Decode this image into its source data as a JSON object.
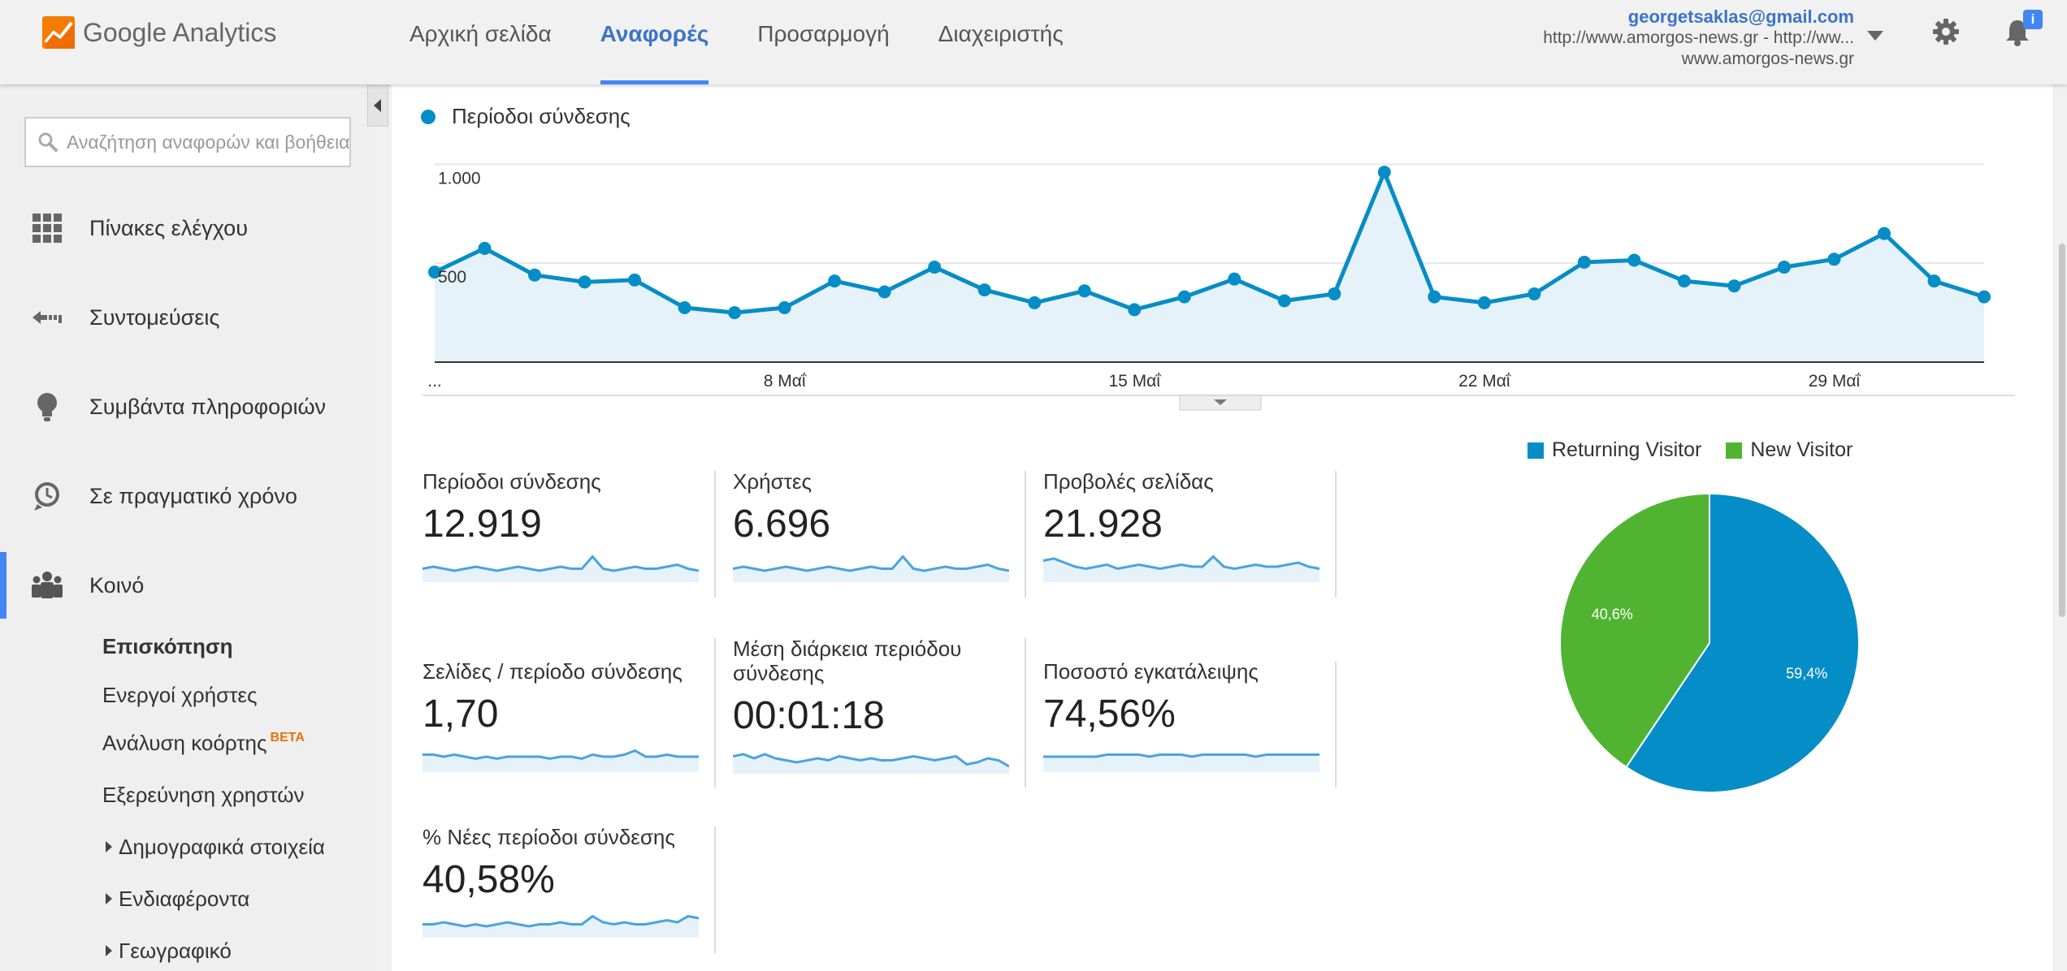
{
  "app": {
    "name": "Google Analytics"
  },
  "nav": {
    "items": [
      {
        "label": "Αρχική σελίδα",
        "active": false
      },
      {
        "label": "Αναφορές",
        "active": true
      },
      {
        "label": "Προσαρμογή",
        "active": false
      },
      {
        "label": "Διαχειριστής",
        "active": false
      }
    ]
  },
  "account": {
    "email": "georgetsaklas@gmail.com",
    "property": "http://www.amorgos-news.gr - http://ww...",
    "view": "www.amorgos-news.gr",
    "notification_badge": "i"
  },
  "search": {
    "placeholder": "Αναζήτηση αναφορών και βοήθεια"
  },
  "sidebar": {
    "items": [
      {
        "label": "Πίνακες ελέγχου",
        "icon": "dashboard-grid-icon"
      },
      {
        "label": "Συντομεύσεις",
        "icon": "shortcut-arrow-icon"
      },
      {
        "label": "Συμβάντα πληροφοριών",
        "icon": "lightbulb-icon"
      },
      {
        "label": "Σε πραγματικό χρόνο",
        "icon": "clock-icon"
      },
      {
        "label": "Κοινό",
        "icon": "audience-people-icon",
        "active": true
      }
    ],
    "subitems": [
      {
        "label": "Επισκόπηση",
        "selected": true
      },
      {
        "label": "Ενεργοί χρήστες"
      },
      {
        "label": "Ανάλυση κοόρτης",
        "badge": "BETA"
      },
      {
        "label": "Εξερεύνηση χρηστών"
      },
      {
        "label": "Δημογραφικά στοιχεία",
        "expandable": true
      },
      {
        "label": "Ενδιαφέροντα",
        "expandable": true
      },
      {
        "label": "Γεωγραφικό",
        "expandable": true
      }
    ]
  },
  "colors": {
    "accent": "#4285f4",
    "series": "#058dc7",
    "returning": "#058dc7",
    "new": "#50b432"
  },
  "chart_data": [
    {
      "type": "line",
      "legend": "Περίοδοι σύνδεσης",
      "y_tick_labels": [
        "1.000",
        "500"
      ],
      "ylim": [
        0,
        1100
      ],
      "x_tick_labels": [
        "...",
        "8 Μαΐ",
        "15 Μαΐ",
        "22 Μαΐ",
        "29 Μαΐ"
      ],
      "x_tick_index": [
        0,
        7,
        14,
        21,
        28
      ],
      "series": [
        {
          "name": "Περίοδοι σύνδεσης",
          "values": [
            455,
            575,
            440,
            405,
            415,
            275,
            250,
            275,
            410,
            355,
            480,
            365,
            300,
            360,
            265,
            330,
            420,
            310,
            345,
            960,
            330,
            300,
            345,
            505,
            515,
            410,
            385,
            480,
            520,
            650,
            410,
            330
          ]
        }
      ]
    },
    {
      "type": "pie",
      "legend": [
        "Returning Visitor",
        "New Visitor"
      ],
      "slices": [
        {
          "name": "Returning Visitor",
          "value": 59.4,
          "label": "59,4%"
        },
        {
          "name": "New Visitor",
          "value": 40.6,
          "label": "40,6%"
        }
      ]
    }
  ],
  "metrics": [
    {
      "label": "Περίοδοι σύνδεσης",
      "value": "12.919",
      "spark": [
        5,
        6,
        5,
        4,
        5,
        6,
        5,
        4,
        5,
        6,
        5,
        4,
        5,
        6,
        5,
        5,
        11,
        5,
        4,
        5,
        6,
        5,
        5,
        6,
        7,
        5,
        4
      ]
    },
    {
      "label": "Χρήστες",
      "value": "6.696",
      "spark": [
        5,
        6,
        5,
        4,
        5,
        6,
        5,
        4,
        5,
        6,
        5,
        4,
        5,
        6,
        5,
        5,
        11,
        5,
        4,
        5,
        6,
        5,
        5,
        6,
        7,
        5,
        4
      ]
    },
    {
      "label": "Προβολές σελίδας",
      "value": "21.928",
      "spark": [
        9,
        10,
        8,
        6,
        5,
        6,
        7,
        5,
        6,
        7,
        6,
        5,
        6,
        7,
        6,
        6,
        11,
        6,
        5,
        6,
        7,
        6,
        6,
        7,
        8,
        6,
        5
      ]
    },
    {
      "label": "Σελίδες / περίοδο σύνδεσης",
      "value": "1,70",
      "spark": [
        7,
        7,
        6,
        7,
        6,
        5,
        6,
        5,
        6,
        6,
        6,
        6,
        5,
        6,
        6,
        5,
        7,
        6,
        6,
        7,
        9,
        6,
        6,
        7,
        6,
        6,
        6
      ]
    },
    {
      "label": "Μέση διάρκεια περιόδου σύνδεσης",
      "value": "00:01:18",
      "spark": [
        7,
        8,
        6,
        8,
        6,
        5,
        4,
        5,
        6,
        5,
        7,
        6,
        5,
        6,
        5,
        5,
        6,
        7,
        6,
        5,
        6,
        7,
        3,
        4,
        6,
        5,
        2
      ]
    },
    {
      "label": "Ποσοστό εγκατάλειψης",
      "value": "74,56%",
      "spark": [
        6,
        6,
        6,
        6,
        6,
        6,
        7,
        7,
        7,
        7,
        6,
        7,
        7,
        7,
        6,
        7,
        7,
        7,
        7,
        7,
        6,
        7,
        7,
        7,
        7,
        7,
        7
      ]
    },
    {
      "label": "% Νέες περίοδοι σύνδεσης",
      "value": "40,58%",
      "spark": [
        5,
        5,
        6,
        5,
        4,
        5,
        4,
        5,
        6,
        5,
        4,
        5,
        5,
        6,
        5,
        5,
        9,
        6,
        5,
        6,
        5,
        5,
        6,
        7,
        6,
        9,
        8
      ]
    }
  ]
}
